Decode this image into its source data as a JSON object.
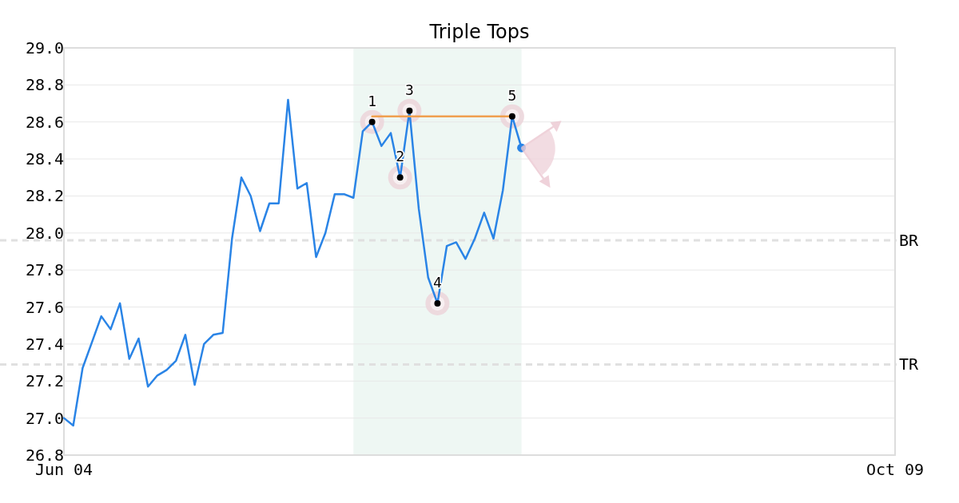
{
  "chart_data": {
    "type": "line",
    "title": "Triple Tops",
    "categories": [
      "Jun 04",
      null,
      null,
      null,
      null,
      null,
      null,
      null,
      null,
      null,
      null,
      null,
      null,
      null,
      null,
      null,
      null,
      null,
      null,
      null,
      null,
      null,
      null,
      null,
      null,
      null,
      null,
      null,
      null,
      null,
      null,
      null,
      null,
      null,
      null,
      null,
      null,
      null,
      null,
      null,
      null,
      null,
      null,
      null,
      null,
      null,
      null,
      null,
      null,
      null,
      null,
      null,
      null,
      null,
      null,
      null,
      null,
      null,
      null,
      null,
      null,
      null,
      null,
      null,
      null,
      null,
      null,
      null,
      null,
      null,
      null,
      null,
      null,
      null,
      null,
      null,
      null,
      null,
      null,
      null,
      null,
      null,
      null,
      null,
      null,
      null,
      null,
      null,
      null,
      "Oct 09"
    ],
    "ylim": [
      26.8,
      29.0
    ],
    "yticks": [
      {
        "value": 26.8,
        "label": "26.8"
      },
      {
        "value": 27.0,
        "label": "27.0"
      },
      {
        "value": 27.2,
        "label": "27.2"
      },
      {
        "value": 27.4,
        "label": "27.4"
      },
      {
        "value": 27.6,
        "label": "27.6"
      },
      {
        "value": 27.8,
        "label": "27.8"
      },
      {
        "value": 28.0,
        "label": "28.0"
      },
      {
        "value": 28.2,
        "label": "28.2"
      },
      {
        "value": 28.4,
        "label": "28.4"
      },
      {
        "value": 28.6,
        "label": "28.6"
      },
      {
        "value": 28.8,
        "label": "28.8"
      },
      {
        "value": 29.0,
        "label": "29.0"
      }
    ],
    "grid": "y",
    "line_style": "solid",
    "series": [
      {
        "color": "#2a84e6",
        "marker": "none",
        "values": [
          27.0,
          26.96,
          27.27,
          27.41,
          27.55,
          27.48,
          27.62,
          27.32,
          27.43,
          27.17,
          27.23,
          27.26,
          27.31,
          27.45,
          27.18,
          27.4,
          27.45,
          27.46,
          27.97,
          28.3,
          28.2,
          28.01,
          28.16,
          28.16,
          28.72,
          28.24,
          28.27,
          27.87,
          28.0,
          28.21,
          28.21,
          28.19,
          28.55,
          28.6,
          28.47,
          28.54,
          28.3,
          28.66,
          28.13,
          27.76,
          27.62,
          27.93,
          27.95,
          27.86,
          27.97,
          28.11,
          27.97,
          28.23,
          28.63,
          28.46,
          null,
          null,
          null,
          null,
          null,
          null,
          null,
          null,
          null,
          null,
          null,
          null,
          null,
          null,
          null,
          null,
          null,
          null,
          null,
          null,
          null,
          null,
          null,
          null,
          null,
          null,
          null,
          null,
          null,
          null,
          null,
          null,
          null,
          null,
          null,
          null,
          null,
          null,
          null,
          null
        ]
      },
      {
        "color": "#f0a050",
        "marker": "none",
        "values": [
          null,
          null,
          null,
          null,
          null,
          null,
          null,
          null,
          null,
          null,
          null,
          null,
          null,
          null,
          null,
          null,
          null,
          null,
          null,
          null,
          null,
          null,
          null,
          null,
          null,
          null,
          null,
          null,
          null,
          null,
          null,
          null,
          null,
          28.63,
          28.63,
          28.63,
          28.63,
          28.63,
          28.63,
          28.63,
          28.63,
          28.63,
          28.63,
          28.63,
          28.63,
          28.63,
          28.63,
          28.63,
          28.63,
          null,
          null,
          null,
          null,
          null,
          null,
          null,
          null,
          null,
          null,
          null,
          null,
          null,
          null,
          null,
          null,
          null,
          null,
          null,
          null,
          null,
          null,
          null,
          null,
          null,
          null,
          null,
          null,
          null,
          null,
          null,
          null,
          null,
          null,
          null,
          null,
          null,
          null,
          null,
          null,
          null
        ]
      },
      {
        "type": "scatter",
        "color": "#000000",
        "marker": "circle",
        "values": [
          null,
          null,
          null,
          null,
          null,
          null,
          null,
          null,
          null,
          null,
          null,
          null,
          null,
          null,
          null,
          null,
          null,
          null,
          null,
          null,
          null,
          null,
          null,
          null,
          null,
          null,
          null,
          null,
          null,
          null,
          null,
          null,
          null,
          28.6,
          null,
          null,
          28.3,
          28.66,
          null,
          null,
          27.62,
          null,
          null,
          null,
          null,
          null,
          null,
          null,
          28.63,
          null,
          null,
          null,
          null,
          null,
          null,
          null,
          null,
          null,
          null,
          null,
          null,
          null,
          null,
          null,
          null,
          null,
          null,
          null,
          null,
          null,
          null,
          null,
          null,
          null,
          null,
          null,
          null,
          null,
          null,
          null,
          null,
          null,
          null,
          null,
          null,
          null,
          null,
          null,
          null,
          null
        ]
      },
      {
        "type": "scatter",
        "color": "#2a84e6",
        "marker": "circle",
        "values": [
          null,
          null,
          null,
          null,
          null,
          null,
          null,
          null,
          null,
          null,
          null,
          null,
          null,
          null,
          null,
          null,
          null,
          null,
          null,
          null,
          null,
          null,
          null,
          null,
          null,
          null,
          null,
          null,
          null,
          null,
          null,
          null,
          null,
          null,
          null,
          null,
          null,
          null,
          null,
          null,
          null,
          null,
          null,
          null,
          null,
          null,
          null,
          null,
          null,
          28.46,
          null,
          null,
          null,
          null,
          null,
          null,
          null,
          null,
          null,
          null,
          null,
          null,
          null,
          null,
          null,
          null,
          null,
          null,
          null,
          null,
          null,
          null,
          null,
          null,
          null,
          null,
          null,
          null,
          null,
          null,
          null,
          null,
          null,
          null,
          null,
          null,
          null,
          null,
          null,
          null
        ]
      }
    ],
    "ref_lines": [
      {
        "axis": "y",
        "value": 27.96,
        "label": "BR",
        "color": "#e0e0e0",
        "line_style": "dashed"
      },
      {
        "axis": "y",
        "value": 27.29,
        "label": "TR",
        "color": "#e0e0e0",
        "line_style": "dashed"
      }
    ],
    "annotations": [
      "1",
      "2",
      "3",
      "4",
      "5"
    ]
  }
}
